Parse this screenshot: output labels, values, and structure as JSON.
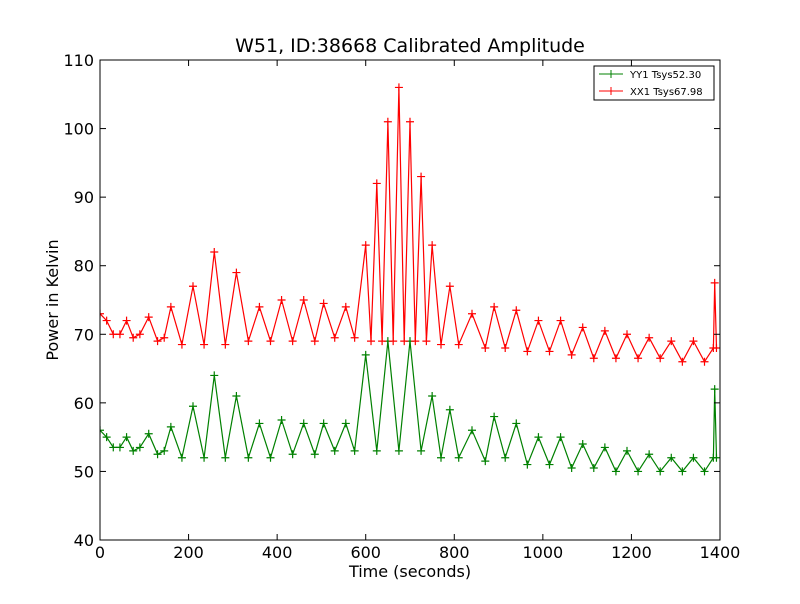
{
  "chart_data": {
    "type": "line",
    "title": "W51, ID:38668 Calibrated Amplitude",
    "xlabel": "Time (seconds)",
    "ylabel": "Power in Kelvin",
    "xlim": [
      0,
      1400
    ],
    "ylim": [
      40,
      110
    ],
    "xticks": [
      "0",
      "200",
      "400",
      "600",
      "800",
      "1000",
      "1200",
      "1400"
    ],
    "yticks": [
      "40",
      "50",
      "60",
      "70",
      "80",
      "90",
      "100",
      "110"
    ],
    "grid": false,
    "legend_position": "top-right",
    "marker": "plus",
    "series": [
      {
        "name": "YY1 Tsys52.30",
        "color": "#008000",
        "x": [
          0,
          15,
          30,
          45,
          60,
          75,
          90,
          110,
          130,
          145,
          160,
          185,
          210,
          235,
          258,
          283,
          308,
          335,
          360,
          385,
          410,
          435,
          460,
          485,
          505,
          530,
          555,
          575,
          600,
          625,
          650,
          675,
          700,
          725,
          750,
          770,
          790,
          810,
          840,
          870,
          890,
          915,
          940,
          965,
          990,
          1015,
          1040,
          1065,
          1090,
          1115,
          1140,
          1165,
          1190,
          1215,
          1240,
          1265,
          1290,
          1315,
          1340,
          1365,
          1385,
          1388,
          1392
        ],
        "y": [
          56,
          55,
          53.5,
          53.5,
          55,
          53,
          53.5,
          55.5,
          52.5,
          53,
          56.5,
          52,
          59.5,
          52,
          64,
          52,
          61,
          52,
          57,
          52,
          57.5,
          52.5,
          57,
          52.5,
          57,
          53,
          57,
          53,
          67,
          53,
          69,
          53,
          69,
          53,
          61,
          52,
          59,
          52,
          56,
          51.5,
          58,
          52,
          57,
          51,
          55,
          51,
          55,
          50.5,
          54,
          50.5,
          53.5,
          50,
          53,
          50,
          52.5,
          50,
          52,
          50,
          52,
          50,
          52,
          62,
          52
        ]
      },
      {
        "name": "XX1 Tsys67.98",
        "color": "#ff0000",
        "x": [
          0,
          15,
          30,
          45,
          60,
          75,
          90,
          110,
          130,
          145,
          160,
          185,
          210,
          235,
          258,
          283,
          308,
          335,
          360,
          385,
          410,
          435,
          460,
          485,
          505,
          530,
          555,
          575,
          600,
          612,
          625,
          637,
          650,
          662,
          675,
          687,
          700,
          712,
          725,
          737,
          750,
          770,
          790,
          810,
          840,
          870,
          890,
          915,
          940,
          965,
          990,
          1015,
          1040,
          1065,
          1090,
          1115,
          1140,
          1165,
          1190,
          1215,
          1240,
          1265,
          1290,
          1315,
          1340,
          1365,
          1385,
          1388,
          1392
        ],
        "y": [
          73,
          72,
          70,
          70,
          72,
          69.5,
          70,
          72.5,
          69,
          69.5,
          74,
          68.5,
          77,
          68.5,
          82,
          68.5,
          79,
          69,
          74,
          69,
          75,
          69,
          75,
          69,
          74.5,
          69.5,
          74,
          69.5,
          83,
          69,
          92,
          69,
          101,
          69,
          106,
          69,
          101,
          69,
          93,
          69,
          83,
          68.5,
          77,
          68.5,
          73,
          68,
          74,
          68,
          73.5,
          67.5,
          72,
          67.5,
          72,
          67,
          71,
          66.5,
          70.5,
          66.5,
          70,
          66.5,
          69.5,
          66.5,
          69,
          66,
          69,
          66,
          68,
          77.5,
          68
        ]
      }
    ]
  }
}
